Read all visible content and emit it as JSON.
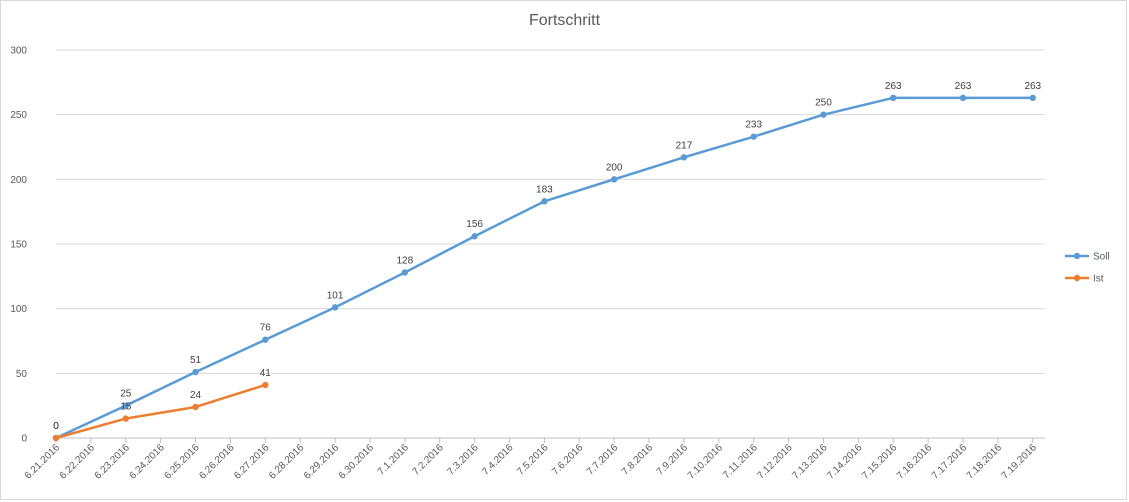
{
  "chart_data": {
    "type": "line",
    "title": "Fortschritt",
    "xlabel": "",
    "ylabel": "",
    "ylim": [
      0,
      300
    ],
    "yticks": [
      0,
      50,
      100,
      150,
      200,
      250,
      300
    ],
    "grid": true,
    "legend_position": "right",
    "categories": [
      "6.21.2016",
      "6.22.2016",
      "6.23.2016",
      "6.24.2016",
      "6.25.2016",
      "6.26.2016",
      "6.27.2016",
      "6.28.2016",
      "6.29.2016",
      "6.30.2016",
      "7.1.2016",
      "7.2.2016",
      "7.3.2016",
      "7.4.2016",
      "7.5.2016",
      "7.6.2016",
      "7.7.2016",
      "7.8.2016",
      "7.9.2016",
      "7.10.2016",
      "7.11.2016",
      "7.12.2016",
      "7.13.2016",
      "7.14.2016",
      "7.15.2016",
      "7.16.2016",
      "7.17.2016",
      "7.18.2016",
      "7.19.2016"
    ],
    "series": [
      {
        "name": "Soll",
        "color": "#5b9bd5",
        "points": [
          {
            "x": "6.21.2016",
            "y": 0
          },
          {
            "x": "6.23.2016",
            "y": 25
          },
          {
            "x": "6.25.2016",
            "y": 51
          },
          {
            "x": "6.27.2016",
            "y": 76
          },
          {
            "x": "6.29.2016",
            "y": 101
          },
          {
            "x": "7.1.2016",
            "y": 128
          },
          {
            "x": "7.3.2016",
            "y": 156
          },
          {
            "x": "7.5.2016",
            "y": 183
          },
          {
            "x": "7.7.2016",
            "y": 200
          },
          {
            "x": "7.9.2016",
            "y": 217
          },
          {
            "x": "7.11.2016",
            "y": 233
          },
          {
            "x": "7.13.2016",
            "y": 250
          },
          {
            "x": "7.15.2016",
            "y": 263
          },
          {
            "x": "7.17.2016",
            "y": 263
          },
          {
            "x": "7.19.2016",
            "y": 263
          }
        ]
      },
      {
        "name": "Ist",
        "color": "#ed7d31",
        "points": [
          {
            "x": "6.21.2016",
            "y": 0
          },
          {
            "x": "6.23.2016",
            "y": 15
          },
          {
            "x": "6.25.2016",
            "y": 24
          },
          {
            "x": "6.27.2016",
            "y": 41
          }
        ]
      }
    ]
  }
}
